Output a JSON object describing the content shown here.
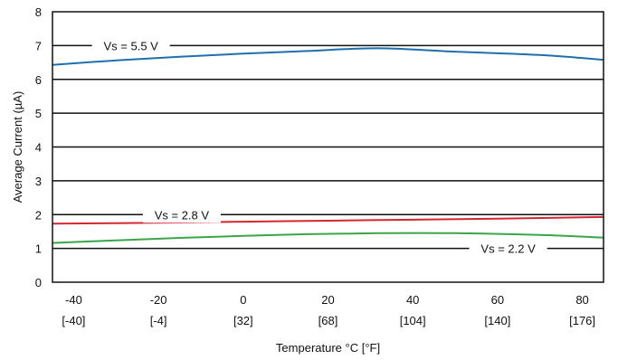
{
  "chart_data": {
    "type": "line",
    "xlabel": "Temperature °C [°F]",
    "ylabel": "Average Current (µA)",
    "xlim": [
      -45,
      85
    ],
    "ylim": [
      0,
      8
    ],
    "grid": "horizontal",
    "xticks": [
      {
        "value": -40,
        "label": "-40",
        "sublabel": "[-40]"
      },
      {
        "value": -20,
        "label": "-20",
        "sublabel": "[-4]"
      },
      {
        "value": 0,
        "label": "0",
        "sublabel": "[32]"
      },
      {
        "value": 20,
        "label": "20",
        "sublabel": "[68]"
      },
      {
        "value": 40,
        "label": "40",
        "sublabel": "[104]"
      },
      {
        "value": 60,
        "label": "60",
        "sublabel": "[140]"
      },
      {
        "value": 80,
        "label": "80",
        "sublabel": "[176]"
      }
    ],
    "yticks": [
      0,
      1,
      2,
      3,
      4,
      5,
      6,
      7,
      8
    ],
    "series": [
      {
        "name": "Vs = 5.5 V",
        "color": "#1f6fae",
        "x": [
          -45,
          -30,
          -15,
          0,
          15,
          32,
          50,
          70,
          85
        ],
        "y": [
          6.43,
          6.56,
          6.67,
          6.76,
          6.84,
          6.92,
          6.82,
          6.72,
          6.58
        ]
      },
      {
        "name": "Vs = 2.8 V",
        "color": "#d6262f",
        "x": [
          -45,
          -20,
          0,
          20,
          40,
          60,
          85
        ],
        "y": [
          1.73,
          1.76,
          1.79,
          1.82,
          1.85,
          1.88,
          1.93
        ]
      },
      {
        "name": "Vs = 2.2 V",
        "color": "#3aa648",
        "x": [
          -45,
          -30,
          -15,
          0,
          15,
          32,
          50,
          70,
          85
        ],
        "y": [
          1.16,
          1.24,
          1.31,
          1.37,
          1.42,
          1.45,
          1.45,
          1.4,
          1.32
        ]
      }
    ]
  }
}
